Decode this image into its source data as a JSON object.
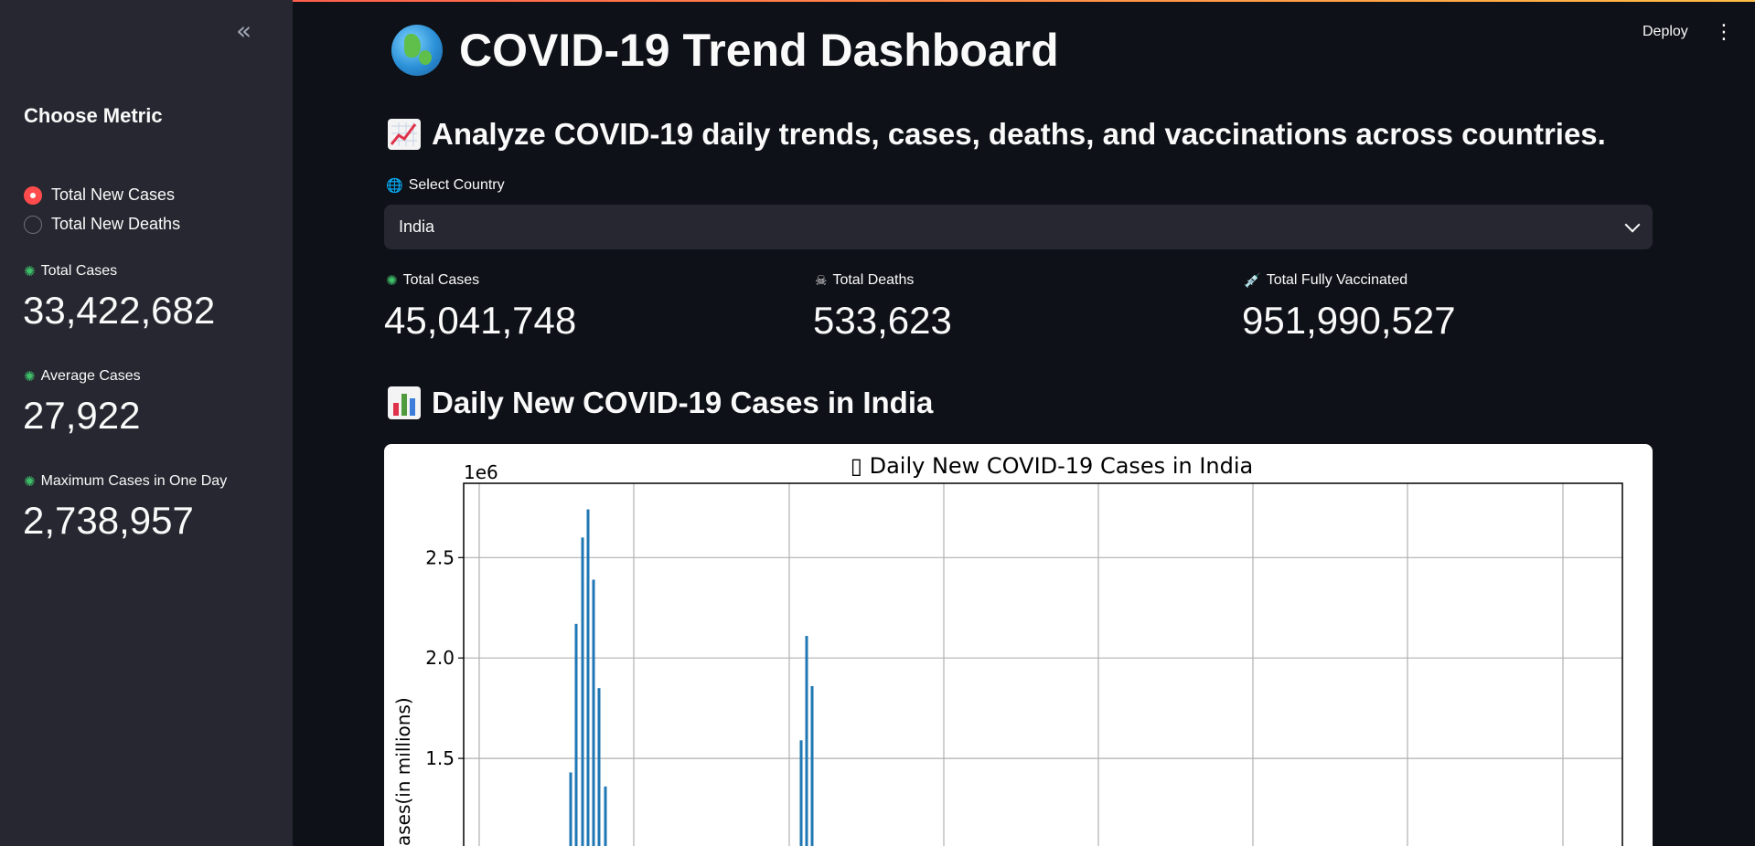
{
  "app": {
    "deploy_label": "Deploy",
    "menu_icon": "kebab-menu-icon",
    "collapse_glyph": "«"
  },
  "sidebar": {
    "title": "Choose Metric",
    "options": [
      {
        "label": "Total New Cases",
        "selected": true
      },
      {
        "label": "Total New Deaths",
        "selected": false
      }
    ],
    "metrics": [
      {
        "label": "Total Cases",
        "value": "33,422,682",
        "icon": "virus-icon"
      },
      {
        "label": "Average Cases",
        "value": "27,922",
        "icon": "virus-icon"
      },
      {
        "label": "Maximum Cases in One Day",
        "value": "2,738,957",
        "icon": "virus-icon"
      }
    ]
  },
  "header": {
    "title": "COVID-19 Trend Dashboard",
    "title_icon": "globe-icon",
    "subtitle": "Analyze COVID-19 daily trends, cases, deaths, and vaccinations across countries.",
    "subtitle_icon": "chart-increasing-icon"
  },
  "country_select": {
    "label": "Select Country",
    "value": "India"
  },
  "kpis": [
    {
      "label": "Total Cases",
      "value": "45,041,748",
      "icon": "virus-icon"
    },
    {
      "label": "Total Deaths",
      "value": "533,623",
      "icon": "skull-icon"
    },
    {
      "label": "Total Fully Vaccinated",
      "value": "951,990,527",
      "icon": "syringe-icon"
    }
  ],
  "section": {
    "heading": "Daily New COVID-19 Cases in India",
    "icon": "bar-chart-icon"
  },
  "chart_data": {
    "type": "bar",
    "title": "▯ Daily New COVID-19 Cases in India",
    "ylabel": "ases(in millions)",
    "y_offset_label": "1e6",
    "yticks": [
      "1.5",
      "2.0",
      "2.5"
    ],
    "ylim": [
      1.05,
      2.87
    ],
    "grid": true,
    "bars": [
      1.43,
      2.17,
      2.6,
      2.74,
      2.39,
      1.85,
      1.36,
      1.59,
      2.11,
      1.86
    ],
    "color": "#1f77b4"
  }
}
